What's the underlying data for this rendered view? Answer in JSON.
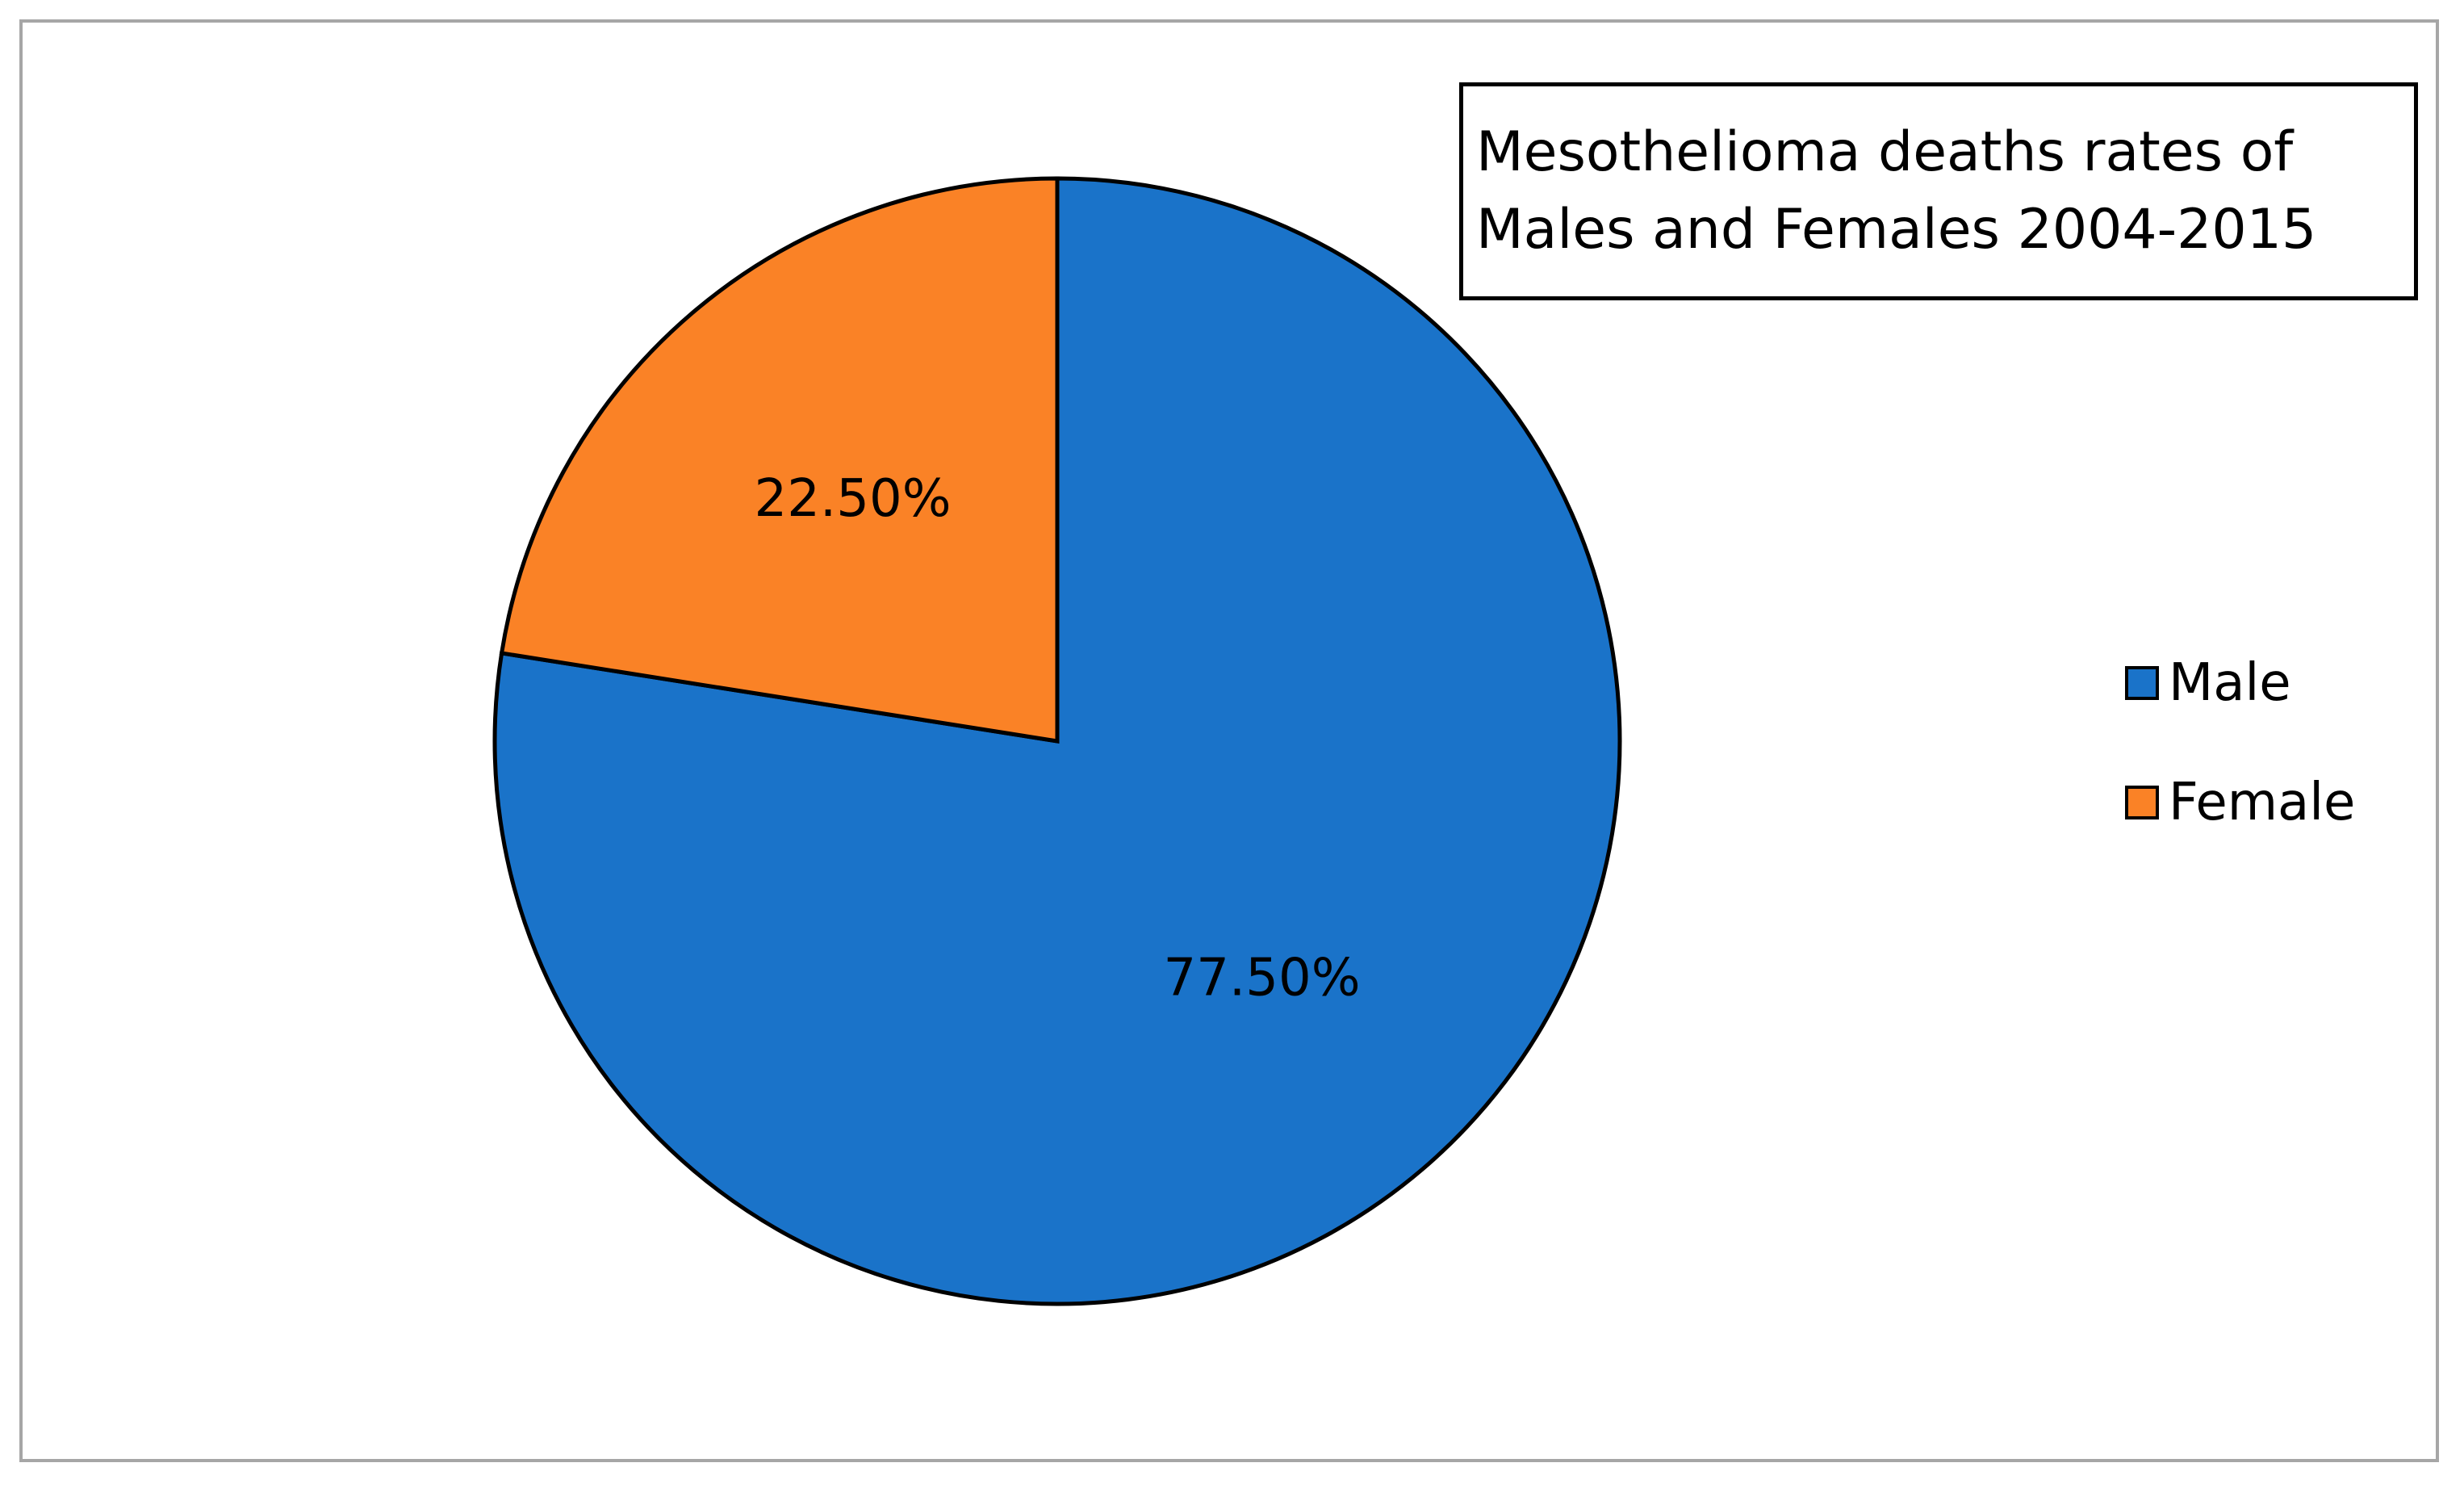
{
  "chart_data": {
    "type": "pie",
    "title": "Mesothelioma deaths rates of\nMales and Females 2004-2015",
    "categories": [
      "Male",
      "Female"
    ],
    "values": [
      77.5,
      22.5
    ],
    "data_labels": [
      "77.50%",
      "22.50%"
    ],
    "colors": [
      "#1a73c9",
      "#fa8226"
    ],
    "legend": {
      "placement": "right",
      "entries": [
        "Male",
        "Female"
      ]
    }
  }
}
